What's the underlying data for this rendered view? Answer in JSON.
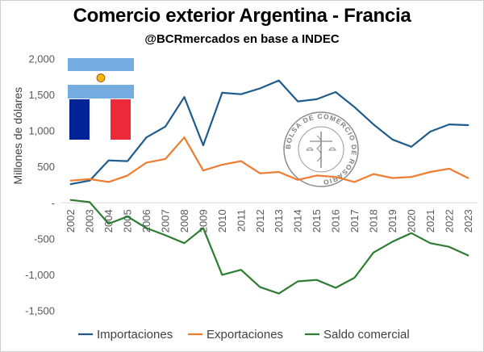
{
  "chart_data": {
    "type": "line",
    "title": "Comercio exterior Argentina - Francia",
    "subtitle": "@BCRmercados en base a INDEC",
    "ylabel": "Millones de dólares",
    "xlabel": "",
    "ylim": [
      -1500,
      2000
    ],
    "yticks": [
      2000,
      1500,
      1000,
      500,
      0,
      -500,
      -1000,
      -1500
    ],
    "ytick_labels": [
      "2,000",
      "1,500",
      "1,000",
      "500",
      "-",
      "-500",
      "-1,000",
      "-1,500"
    ],
    "grid": false,
    "legend_position": "bottom",
    "categories": [
      "2002",
      "2003",
      "2004",
      "2005",
      "2006",
      "2007",
      "2008",
      "2009",
      "2010",
      "2011",
      "2012",
      "2013",
      "2014",
      "2015",
      "2016",
      "2017",
      "2018",
      "2019",
      "2020",
      "2021",
      "2022",
      "2023"
    ],
    "series": [
      {
        "name": "Importaciones",
        "color": "#1f5c8b",
        "values": [
          260,
          310,
          590,
          580,
          910,
          1060,
          1470,
          800,
          1530,
          1510,
          1590,
          1700,
          1410,
          1440,
          1540,
          1330,
          1090,
          880,
          780,
          990,
          1090,
          1080
        ]
      },
      {
        "name": "Exportaciones",
        "color": "#ed7d31",
        "values": [
          310,
          330,
          290,
          380,
          560,
          610,
          910,
          450,
          530,
          580,
          410,
          430,
          320,
          380,
          360,
          290,
          400,
          345,
          360,
          430,
          475,
          345
        ]
      },
      {
        "name": "Saldo comercial",
        "color": "#2e7d32",
        "values": [
          40,
          10,
          -290,
          -190,
          -350,
          -450,
          -560,
          -350,
          -1000,
          -930,
          -1170,
          -1260,
          -1090,
          -1070,
          -1180,
          -1040,
          -690,
          -540,
          -420,
          -560,
          -610,
          -730
        ]
      }
    ]
  },
  "decor": {
    "flag_icons": [
      "argentina-flag-icon",
      "france-flag-icon"
    ],
    "seal_icon": "bolsa-de-comercio-de-rosario-seal-icon"
  }
}
